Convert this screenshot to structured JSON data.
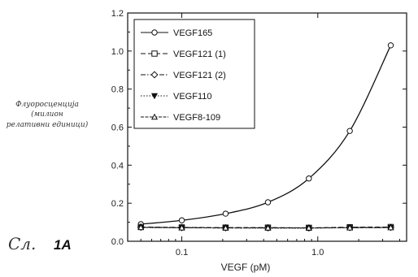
{
  "chart_data": {
    "type": "line",
    "xlabel": "VEGF (pM)",
    "ylabel": "Флуоросценција (милион релативни единици)",
    "xscale": "log",
    "xlim": [
      0.04,
      4.5
    ],
    "ylim": [
      0.0,
      1.2
    ],
    "xticks": [
      {
        "value": 0.1,
        "label": "0.1"
      },
      {
        "value": 1.0,
        "label": "1.0"
      }
    ],
    "yticks": [
      {
        "value": 0.0,
        "label": "0.0"
      },
      {
        "value": 0.2,
        "label": "0.2"
      },
      {
        "value": 0.4,
        "label": "0.4"
      },
      {
        "value": 0.6,
        "label": "0.6"
      },
      {
        "value": 0.8,
        "label": "0.8"
      },
      {
        "value": 1.0,
        "label": "1.0"
      },
      {
        "value": 1.2,
        "label": "1.2"
      }
    ],
    "legend_position": "top-left",
    "x": [
      0.05,
      0.1,
      0.21,
      0.43,
      0.86,
      1.72,
      3.44
    ],
    "series": [
      {
        "name": "VEGF165",
        "marker": "circle",
        "dash": "solid",
        "values": [
          0.09,
          0.11,
          0.145,
          0.205,
          0.33,
          0.58,
          1.03
        ]
      },
      {
        "name": "VEGF121 (1)",
        "marker": "square",
        "dash": "dashed",
        "values": [
          0.075,
          0.073,
          0.072,
          0.072,
          0.071,
          0.074,
          0.075
        ]
      },
      {
        "name": "VEGF121 (2)",
        "marker": "diamond",
        "dash": "dashdot",
        "values": [
          0.074,
          0.072,
          0.071,
          0.071,
          0.07,
          0.072,
          0.073
        ]
      },
      {
        "name": "VEGF110",
        "marker": "triangle-down-filled",
        "dash": "dotted",
        "values": [
          0.072,
          0.071,
          0.07,
          0.069,
          0.069,
          0.071,
          0.072
        ]
      },
      {
        "name": "VEGF8-109",
        "marker": "triangle-up",
        "dash": "fine",
        "values": [
          0.073,
          0.071,
          0.07,
          0.07,
          0.07,
          0.071,
          0.072
        ]
      }
    ]
  },
  "annotations": {
    "ylabel_line1": "Флуоросценција",
    "ylabel_line2": "(милион",
    "ylabel_line3": "релативни единици)",
    "figure_prefix": "Сл.",
    "figure_number": "1A"
  }
}
